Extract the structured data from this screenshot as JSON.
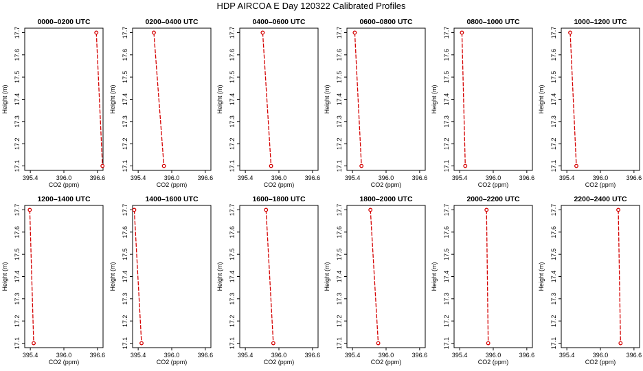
{
  "figure": {
    "title": "HDP AIRCOA E  Day 120322  Calibrated Profiles"
  },
  "style": {
    "line_color": "#d40000",
    "marker_color": "#d40000",
    "axis_color": "#000000",
    "marker": "open-circle",
    "line_style": "dashed"
  },
  "chart_data": [
    {
      "type": "line",
      "title": "0000–0200 UTC",
      "xlabel": "CO2 (ppm)",
      "ylabel": "Height (m)",
      "xlim": [
        395.3,
        396.7
      ],
      "ylim": [
        17.08,
        17.72
      ],
      "xticks": [
        "395.4",
        "396.0",
        "396.6"
      ],
      "yticks": [
        "17.1",
        "17.2",
        "17.3",
        "17.4",
        "17.5",
        "17.6",
        "17.7"
      ],
      "series": [
        {
          "x": [
            396.58,
            396.69
          ],
          "y": [
            17.7,
            17.1
          ]
        }
      ]
    },
    {
      "type": "line",
      "title": "0200–0400 UTC",
      "xlabel": "CO2 (ppm)",
      "ylabel": "Height (m)",
      "xlim": [
        395.3,
        396.7
      ],
      "ylim": [
        17.08,
        17.72
      ],
      "xticks": [
        "395.4",
        "396.0",
        "396.6"
      ],
      "yticks": [
        "17.1",
        "17.2",
        "17.3",
        "17.4",
        "17.5",
        "17.6",
        "17.7"
      ],
      "series": [
        {
          "x": [
            395.68,
            395.86
          ],
          "y": [
            17.7,
            17.1
          ]
        }
      ]
    },
    {
      "type": "line",
      "title": "0400–0600 UTC",
      "xlabel": "CO2 (ppm)",
      "ylabel": "Height (m)",
      "xlim": [
        395.3,
        396.7
      ],
      "ylim": [
        17.08,
        17.72
      ],
      "xticks": [
        "395.4",
        "396.0",
        "396.6"
      ],
      "yticks": [
        "17.1",
        "17.2",
        "17.3",
        "17.4",
        "17.5",
        "17.6",
        "17.7"
      ],
      "series": [
        {
          "x": [
            395.71,
            395.86
          ],
          "y": [
            17.7,
            17.1
          ]
        }
      ]
    },
    {
      "type": "line",
      "title": "0600–0800 UTC",
      "xlabel": "CO2 (ppm)",
      "ylabel": "Height (m)",
      "xlim": [
        395.3,
        396.7
      ],
      "ylim": [
        17.08,
        17.72
      ],
      "xticks": [
        "395.4",
        "396.0",
        "396.6"
      ],
      "yticks": [
        "17.1",
        "17.2",
        "17.3",
        "17.4",
        "17.5",
        "17.6",
        "17.7"
      ],
      "series": [
        {
          "x": [
            395.44,
            395.56
          ],
          "y": [
            17.7,
            17.1
          ]
        }
      ]
    },
    {
      "type": "line",
      "title": "0800–1000 UTC",
      "xlabel": "CO2 (ppm)",
      "ylabel": "Height (m)",
      "xlim": [
        395.3,
        396.7
      ],
      "ylim": [
        17.08,
        17.72
      ],
      "xticks": [
        "395.4",
        "396.0",
        "396.6"
      ],
      "yticks": [
        "17.1",
        "17.2",
        "17.3",
        "17.4",
        "17.5",
        "17.6",
        "17.7"
      ],
      "series": [
        {
          "x": [
            395.44,
            395.5
          ],
          "y": [
            17.7,
            17.1
          ]
        }
      ]
    },
    {
      "type": "line",
      "title": "1000–1200 UTC",
      "xlabel": "CO2 (ppm)",
      "ylabel": "Height (m)",
      "xlim": [
        395.3,
        396.7
      ],
      "ylim": [
        17.08,
        17.72
      ],
      "xticks": [
        "395.4",
        "396.0",
        "396.6"
      ],
      "yticks": [
        "17.1",
        "17.2",
        "17.3",
        "17.4",
        "17.5",
        "17.6",
        "17.7"
      ],
      "series": [
        {
          "x": [
            395.46,
            395.57
          ],
          "y": [
            17.7,
            17.1
          ]
        }
      ]
    },
    {
      "type": "line",
      "title": "1200–1400 UTC",
      "xlabel": "CO2 (ppm)",
      "ylabel": "Height (m)",
      "xlim": [
        395.3,
        396.7
      ],
      "ylim": [
        17.08,
        17.72
      ],
      "xticks": [
        "395.4",
        "396.0",
        "396.6"
      ],
      "yticks": [
        "17.1",
        "17.2",
        "17.3",
        "17.4",
        "17.5",
        "17.6",
        "17.7"
      ],
      "series": [
        {
          "x": [
            395.39,
            395.46
          ],
          "y": [
            17.7,
            17.1
          ]
        }
      ]
    },
    {
      "type": "line",
      "title": "1400–1600 UTC",
      "xlabel": "CO2 (ppm)",
      "ylabel": "Height (m)",
      "xlim": [
        395.3,
        396.7
      ],
      "ylim": [
        17.08,
        17.72
      ],
      "xticks": [
        "395.4",
        "396.0",
        "396.6"
      ],
      "yticks": [
        "17.1",
        "17.2",
        "17.3",
        "17.4",
        "17.5",
        "17.6",
        "17.7"
      ],
      "series": [
        {
          "x": [
            395.33,
            395.46
          ],
          "y": [
            17.7,
            17.1
          ]
        }
      ]
    },
    {
      "type": "line",
      "title": "1600–1800 UTC",
      "xlabel": "CO2 (ppm)",
      "ylabel": "Height (m)",
      "xlim": [
        395.3,
        396.7
      ],
      "ylim": [
        17.08,
        17.72
      ],
      "xticks": [
        "395.4",
        "396.0",
        "396.6"
      ],
      "yticks": [
        "17.1",
        "17.2",
        "17.3",
        "17.4",
        "17.5",
        "17.6",
        "17.7"
      ],
      "series": [
        {
          "x": [
            395.77,
            395.9
          ],
          "y": [
            17.7,
            17.1
          ]
        }
      ]
    },
    {
      "type": "line",
      "title": "1800–2000 UTC",
      "xlabel": "CO2 (ppm)",
      "ylabel": "Height (m)",
      "xlim": [
        395.3,
        396.7
      ],
      "ylim": [
        17.08,
        17.72
      ],
      "xticks": [
        "395.4",
        "396.0",
        "396.6"
      ],
      "yticks": [
        "17.1",
        "17.2",
        "17.3",
        "17.4",
        "17.5",
        "17.6",
        "17.7"
      ],
      "series": [
        {
          "x": [
            395.72,
            395.86
          ],
          "y": [
            17.7,
            17.1
          ]
        }
      ]
    },
    {
      "type": "line",
      "title": "2000–2200 UTC",
      "xlabel": "CO2 (ppm)",
      "ylabel": "Height (m)",
      "xlim": [
        395.3,
        396.7
      ],
      "ylim": [
        17.08,
        17.72
      ],
      "xticks": [
        "395.4",
        "396.0",
        "396.6"
      ],
      "yticks": [
        "17.1",
        "17.2",
        "17.3",
        "17.4",
        "17.5",
        "17.6",
        "17.7"
      ],
      "series": [
        {
          "x": [
            395.88,
            395.91
          ],
          "y": [
            17.7,
            17.1
          ]
        }
      ]
    },
    {
      "type": "line",
      "title": "2200–2400 UTC",
      "xlabel": "CO2 (ppm)",
      "ylabel": "Height (m)",
      "xlim": [
        395.3,
        396.7
      ],
      "ylim": [
        17.08,
        17.72
      ],
      "xticks": [
        "395.4",
        "396.0",
        "396.6"
      ],
      "yticks": [
        "17.1",
        "17.2",
        "17.3",
        "17.4",
        "17.5",
        "17.6",
        "17.7"
      ],
      "series": [
        {
          "x": [
            396.32,
            396.36
          ],
          "y": [
            17.7,
            17.1
          ]
        }
      ]
    }
  ]
}
